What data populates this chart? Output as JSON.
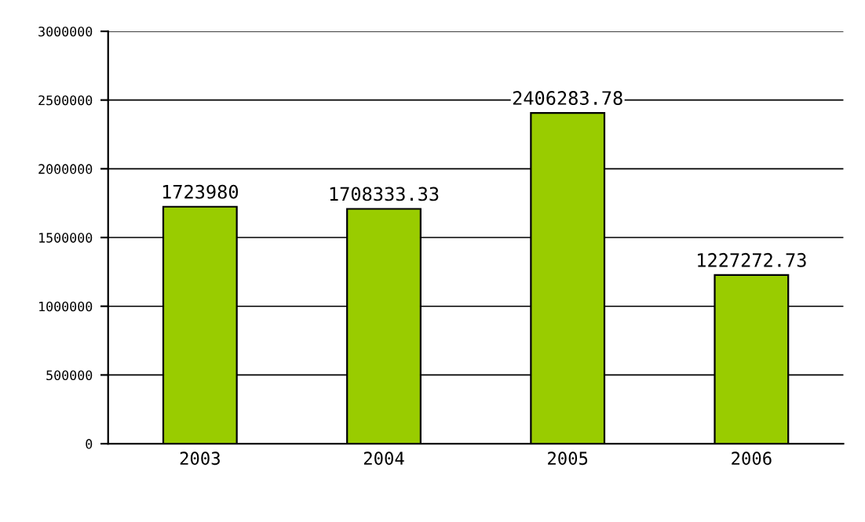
{
  "chart_data": {
    "type": "bar",
    "categories": [
      "2003",
      "2004",
      "2005",
      "2006"
    ],
    "values": [
      1723980,
      1708333.33,
      2406283.78,
      1227272.73
    ],
    "color": "#99cc00",
    "ylim": [
      0,
      3000000
    ],
    "yticks": [
      0,
      500000,
      1000000,
      1500000,
      2000000,
      2500000,
      3000000
    ],
    "grid": "y",
    "data_labels": true
  }
}
